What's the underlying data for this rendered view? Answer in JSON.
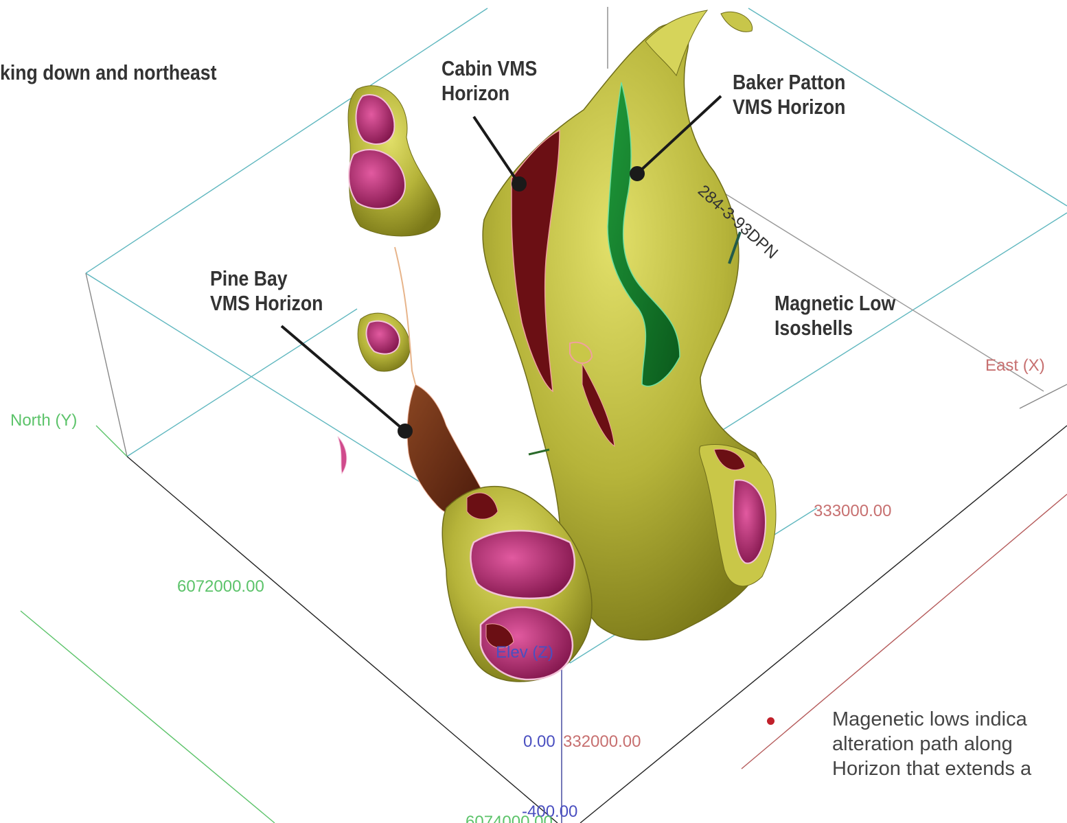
{
  "title": "king down and northeast",
  "callouts": {
    "cabin": [
      "Cabin VMS",
      "Horizon"
    ],
    "baker": [
      "Baker Patton",
      "VMS Horizon"
    ],
    "pine": [
      "Pine Bay",
      "VMS Horizon"
    ],
    "maglow": [
      "Magnetic Low",
      "Isoshells"
    ]
  },
  "drillhole_label": "284-3-93DPN",
  "axes": {
    "north": "North (Y)",
    "east": "East (X)",
    "elev": "Elev (Z)",
    "y_tick": "6072000.00",
    "x_tick_top": "333000.00",
    "x_tick_bottom": "332000.00",
    "z_tick_0": "0.00",
    "z_tick_neg": "-400.00",
    "y_tick_bottom": "6074000.00"
  },
  "note_lines": [
    "Magenetic lows indica",
    "alteration path along",
    "Horizon that extends a"
  ],
  "colors": {
    "shell_fill": "#b9b83a",
    "shell_dark": "#8f8d22",
    "magenta": "#c2397d",
    "maroon": "#6b0f14",
    "green": "#137a2a",
    "brown": "#6a2c14",
    "box_cyan": "#5fb7bf",
    "axis_green": "#5cc36a",
    "axis_red": "#c77070",
    "axis_blue": "#4a4fc0"
  }
}
